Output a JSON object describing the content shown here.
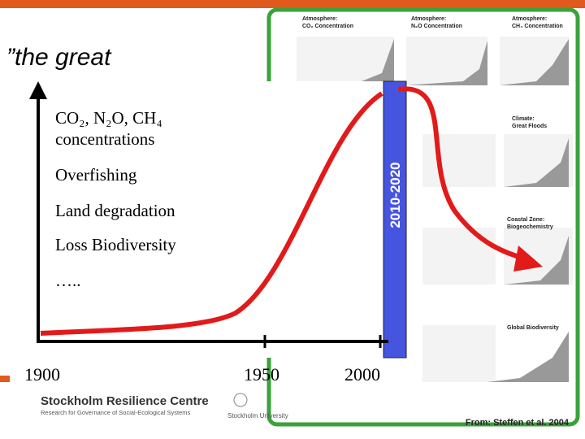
{
  "slide": {
    "heading": "”the great",
    "labels": [
      "CO₂, N₂O, CH₄",
      "concentrations",
      "Overfishing",
      "Land degradation",
      "Loss Biodiversity",
      "….."
    ],
    "period": "2010-2020",
    "x_labels": [
      "1900",
      "1950",
      "2000"
    ],
    "panel_titles": [
      "Atmosphere:",
      "CO₂ Concentration",
      "Atmosphere:",
      "N₂O Concentration",
      "Atmosphere:",
      "CH₄ Concentration",
      "Climate:",
      "Great Floods",
      "Coastal Zone:",
      "Biogeochemistry",
      "Global Biodiversity"
    ],
    "source": "From: Steffen et al. 2004",
    "logo": {
      "name": "Stockholm Resilience Centre",
      "tagline": "Research for Governance of Social-Ecological Systems",
      "university": "Stockholm University"
    }
  }
}
